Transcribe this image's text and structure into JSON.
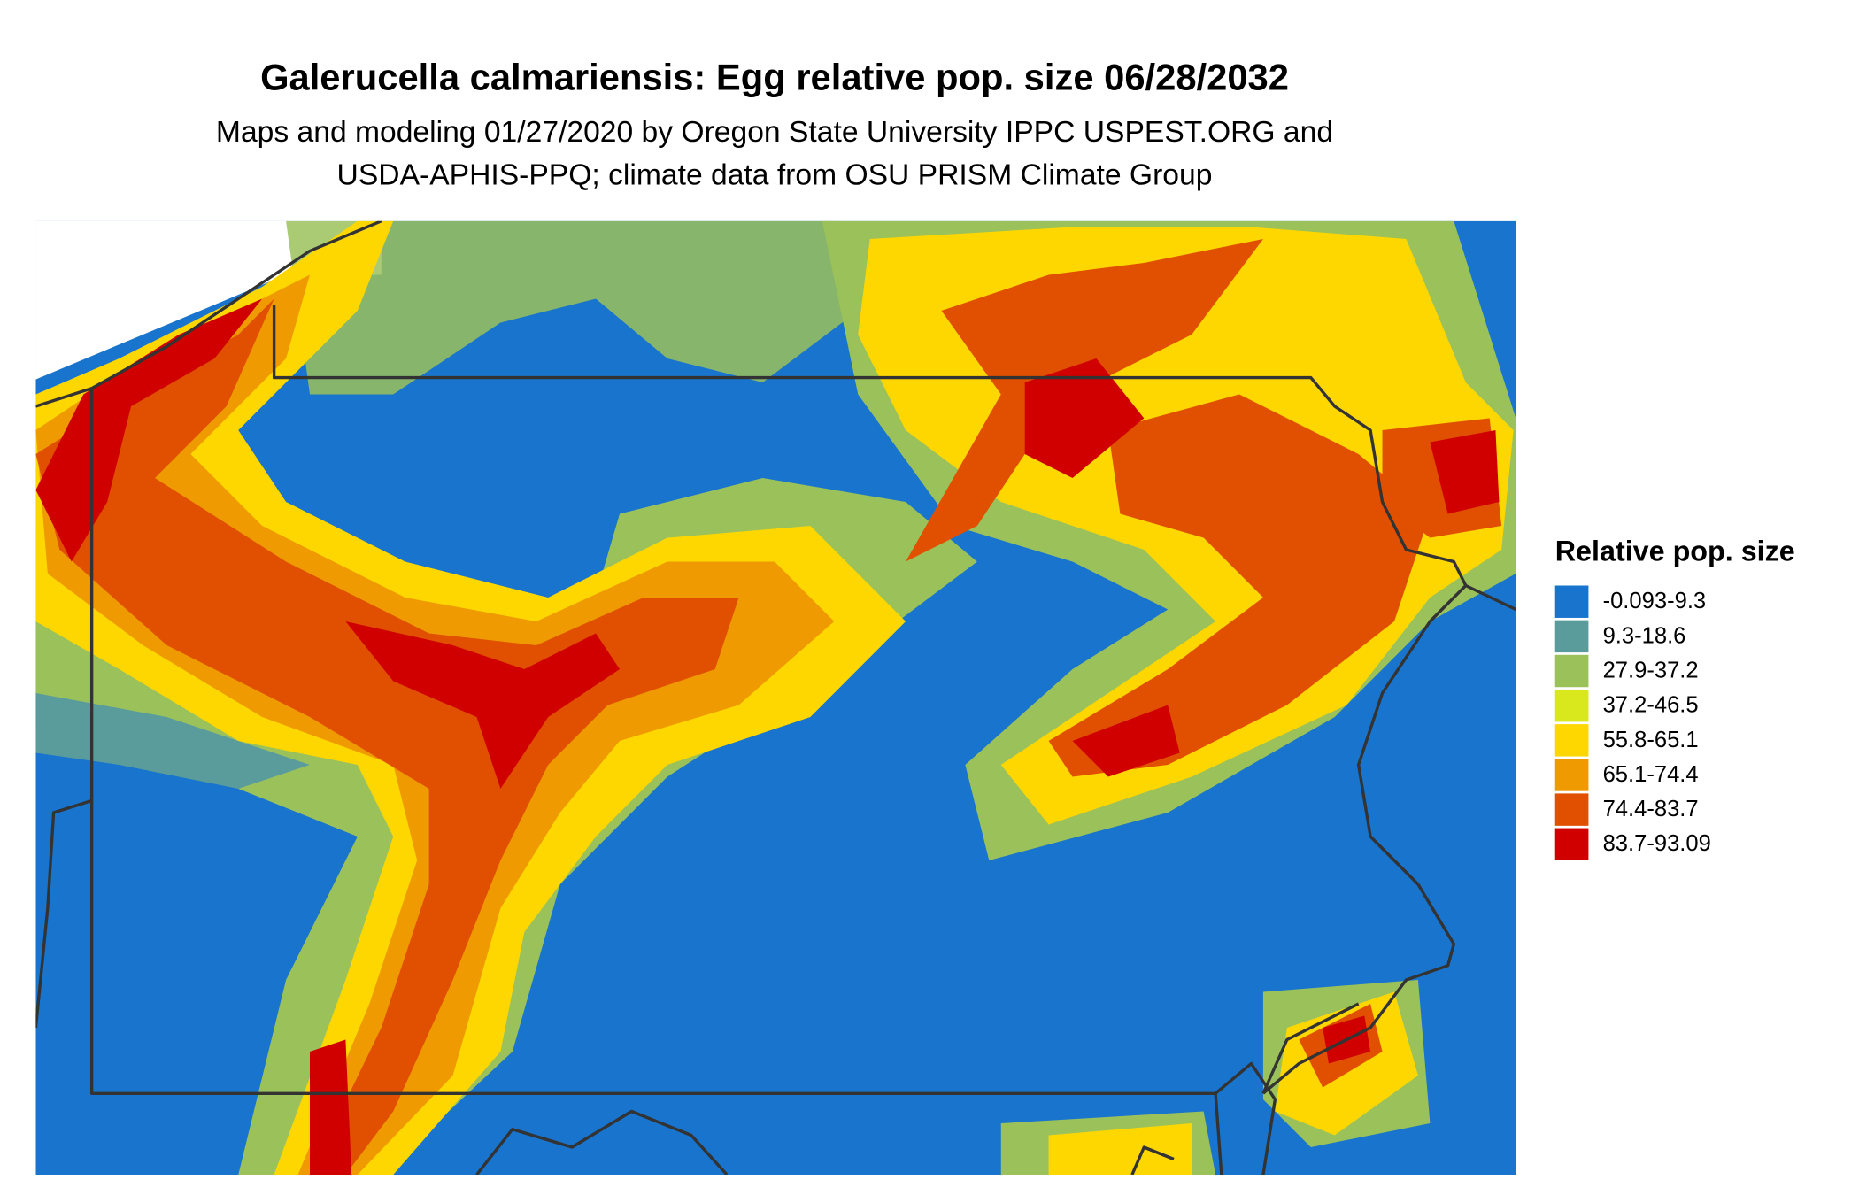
{
  "title": "Galerucella calmariensis: Egg relative pop. size 06/28/2032",
  "subtitle": [
    "Maps and modeling 01/27/2020 by Oregon State University IPPC USPEST.ORG and",
    "USDA-APHIS-PPQ; climate data from OSU PRISM Climate Group"
  ],
  "legend": {
    "title": "Relative pop. size",
    "items": [
      {
        "label": "-0.093-9.3",
        "color": "#1874cd"
      },
      {
        "label": "9.3-18.6",
        "color": "#5a9c9c"
      },
      {
        "label": "27.9-37.2",
        "color": "#9bc15a"
      },
      {
        "label": "37.2-46.5",
        "color": "#d8e81c"
      },
      {
        "label": "55.8-65.1",
        "color": "#ffd700"
      },
      {
        "label": "65.1-74.4",
        "color": "#ee9a00"
      },
      {
        "label": "74.4-83.7",
        "color": "#e05000"
      },
      {
        "label": "83.7-93.09",
        "color": "#d00000"
      }
    ]
  }
}
